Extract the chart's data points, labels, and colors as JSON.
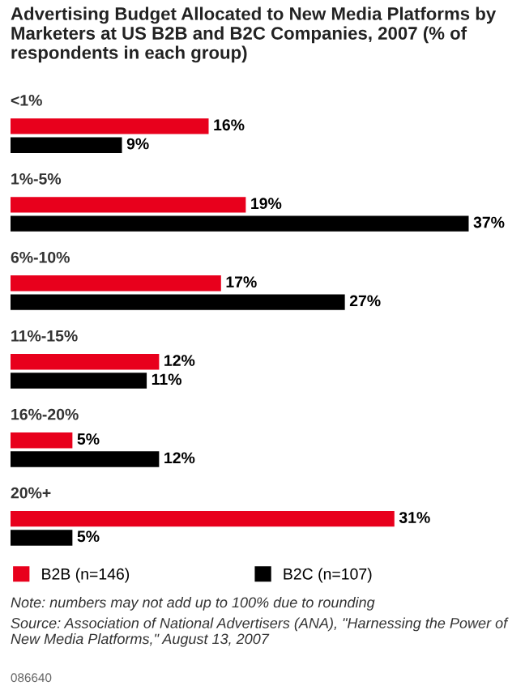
{
  "chart_data": {
    "type": "bar",
    "orientation": "horizontal",
    "title": "Advertising Budget Allocated to New Media Platforms by Marketers at US B2B and B2C Companies, 2007 (% of respondents in each group)",
    "categories": [
      "<1%",
      "1%-5%",
      "6%-10%",
      "11%-15%",
      "16%-20%",
      "20%+"
    ],
    "series": [
      {
        "name": "B2B (n=146)",
        "color": "#e8001c",
        "values": [
          16,
          19,
          17,
          12,
          5,
          31
        ],
        "value_labels": [
          "16%",
          "19%",
          "17%",
          "12%",
          "5%",
          "31%"
        ]
      },
      {
        "name": "B2C (n=107)",
        "color": "#000000",
        "values": [
          9,
          37,
          27,
          11,
          12,
          5
        ],
        "value_labels": [
          "9%",
          "37%",
          "27%",
          "11%",
          "12%",
          "5%"
        ]
      }
    ],
    "legend": "bottom",
    "annotations": [
      "Note: numbers may not add up to 100% due to rounding",
      "Source: Association of National Advertisers (ANA), \"Harnessing the Power of New Media Platforms,\" August 13, 2007",
      "086640"
    ]
  }
}
